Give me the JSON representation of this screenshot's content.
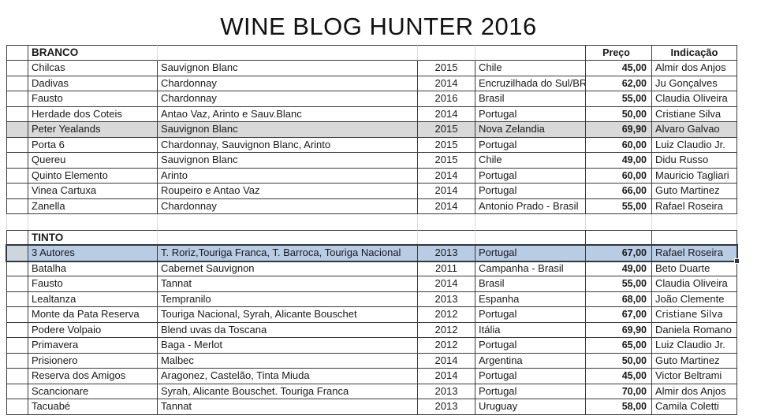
{
  "title": "WINE BLOG HUNTER 2016",
  "columns": {
    "price_header": "Preço",
    "indication_header": "Indicação"
  },
  "colors": {
    "selected_row_fill": "#b8cce4",
    "highlight_row_fill": "#d9d9d9",
    "selection_border": "#2e3640",
    "grid_border": "#3a3a3a",
    "faint_grid": "#d9d9d9"
  },
  "sections": [
    {
      "label": "BRANCO",
      "rows": [
        {
          "name": "Chilcas",
          "grapes": "Sauvignon Blanc",
          "year": "2015",
          "origin": "Chile",
          "price": "45,00",
          "indication": "Almir dos Anjos"
        },
        {
          "name": "Dadivas",
          "grapes": "Chardonnay",
          "year": "2014",
          "origin": "Encruzilhada do Sul/BR",
          "price": "62,00",
          "indication": "Ju Gonçalves"
        },
        {
          "name": "Fausto",
          "grapes": "Chardonnay",
          "year": "2016",
          "origin": "Brasil",
          "price": "55,00",
          "indication": "Claudia Oliveira"
        },
        {
          "name": "Herdade dos Coteis",
          "grapes": "Antao Vaz, Arinto e Sauv.Blanc",
          "year": "2014",
          "origin": "Portugal",
          "price": "50,00",
          "indication": "Cristiane Silva"
        },
        {
          "name": "Peter Yealands",
          "grapes": "Sauvignon Blanc",
          "year": "2015",
          "origin": "Nova Zelandia",
          "price": "69,90",
          "indication": "Alvaro Galvao",
          "highlight": "gray"
        },
        {
          "name": "Porta 6",
          "grapes": "Chardonnay, Sauvignon Blanc,  Arinto",
          "year": "2015",
          "origin": "Portugal",
          "price": "60,00",
          "indication": "Luiz Claudio Jr."
        },
        {
          "name": "Quereu",
          "grapes": "Sauvignon Blanc",
          "year": "2015",
          "origin": "Chile",
          "price": "49,00",
          "indication": "Didu Russo"
        },
        {
          "name": "Quinto Elemento",
          "grapes": "Arinto",
          "year": "2014",
          "origin": "Portugal",
          "price": "60,00",
          "indication": "Mauricio Tagliari"
        },
        {
          "name": "Vinea Cartuxa",
          "grapes": "Roupeiro e Antao Vaz",
          "year": "2014",
          "origin": "Portugal",
          "price": "66,00",
          "indication": "Guto Martinez"
        },
        {
          "name": "Zanella",
          "grapes": "Chardonnay",
          "year": "2014",
          "origin": "Antonio Prado - Brasil",
          "price": "55,00",
          "indication": "Rafael Roseira"
        }
      ]
    },
    {
      "label": "TINTO",
      "rows": [
        {
          "name": "3 Autores",
          "grapes": "T. Roriz,Touriga Franca, T. Barroca, Touriga Nacional",
          "year": "2013",
          "origin": "Portugal",
          "price": "67,00",
          "indication": "Rafael Roseira",
          "highlight": "selected"
        },
        {
          "name": "Batalha",
          "grapes": "Cabernet Sauvignon",
          "year": "2011",
          "origin": "Campanha - Brasil",
          "price": "49,00",
          "indication": "Beto Duarte"
        },
        {
          "name": "Fausto",
          "grapes": "Tannat",
          "year": "2014",
          "origin": "Brasil",
          "price": "55,00",
          "indication": "Claudia Oliveira"
        },
        {
          "name": "Lealtanza",
          "grapes": "Tempranilo",
          "year": "2013",
          "origin": "Espanha",
          "price": "68,00",
          "indication": "João Clemente"
        },
        {
          "name": "Monte da Pata Reserva",
          "grapes": "Touriga Nacional, Syrah, Alicante Bouschet",
          "year": "2012",
          "origin": "Portugal",
          "price": "67,00",
          "indication": "Cristiane Silva",
          "indication_small": true
        },
        {
          "name": "Podere Volpaio",
          "grapes": "Blend uvas da Toscana",
          "year": "2012",
          "origin": "Itália",
          "price": "69,90",
          "indication": "Daniela Romano"
        },
        {
          "name": "Primavera",
          "grapes": "Baga - Merlot",
          "year": "2012",
          "origin": "Portugal",
          "price": "65,00",
          "indication": "Luiz Claudio Jr."
        },
        {
          "name": "Prisionero",
          "grapes": "Malbec",
          "year": "2014",
          "origin": "Argentina",
          "price": "50,00",
          "indication": "Guto Martinez"
        },
        {
          "name": "Reserva dos Amigos",
          "grapes": "Aragonez, Castelão, Tinta Miuda",
          "year": "2014",
          "origin": "Portugal",
          "price": "45,00",
          "indication": "Victor Beltrami"
        },
        {
          "name": "Scancionare",
          "grapes": "Syrah, Alicante Bouschet. Touriga Franca",
          "year": "2013",
          "origin": "Portugal",
          "price": "70,00",
          "indication": "Almir dos Anjos"
        },
        {
          "name": "Tacuabé",
          "grapes": "Tannat",
          "year": "2013",
          "origin": "Uruguay",
          "price": "58,00",
          "indication": "Camila Coletti"
        }
      ]
    }
  ]
}
